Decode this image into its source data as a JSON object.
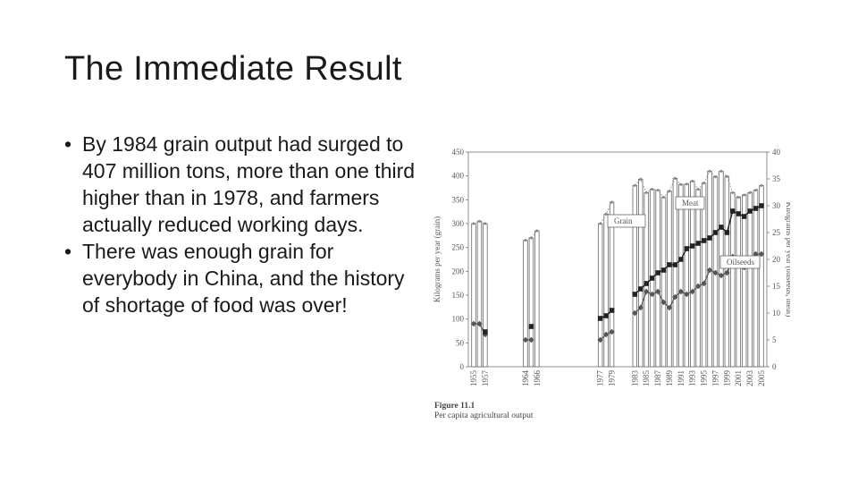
{
  "slide": {
    "title": "The Immediate Result",
    "bullets": [
      {
        "marker": "•",
        "text": "By 1984 grain output had surged to 407 million tons, more than one third higher than in 1978, and farmers actually reduced working days."
      },
      {
        "marker": "•",
        "text": "There was enough grain for everybody in China, and the history of shortage of food was over!"
      }
    ]
  },
  "colors": {
    "bar_fill": "#ffffff",
    "bar_stroke": "#666666",
    "meat": "#222222",
    "oilseeds": "#555555",
    "grain_line": "#888888"
  },
  "chart_data": {
    "type": "bar",
    "title": "",
    "caption_label": "Figure 11.1",
    "caption_text": "Per capita agricultural output",
    "ylabel": "Kilograms per year (grain)",
    "y2label": "Kilograms per year (oilseeds, meat)",
    "ylim": [
      0,
      450
    ],
    "y2lim": [
      0,
      40
    ],
    "yticks": [
      0,
      50,
      100,
      150,
      200,
      250,
      300,
      350,
      400,
      450
    ],
    "y2ticks": [
      0,
      5,
      10,
      15,
      20,
      25,
      30,
      35,
      40
    ],
    "tick_labels": [
      "1955",
      "1957",
      "1964",
      "1966",
      "1977",
      "1979",
      "1983",
      "1985",
      "1987",
      "1989",
      "1991",
      "1993",
      "1995",
      "1997",
      "1999",
      "2001",
      "2003",
      "2005"
    ],
    "legend": [
      "Meat",
      "Grain",
      "Oilseeds"
    ],
    "years": [
      1955,
      1956,
      1957,
      1964,
      1965,
      1966,
      1977,
      1978,
      1979,
      1983,
      1984,
      1985,
      1986,
      1987,
      1988,
      1989,
      1990,
      1991,
      1992,
      1993,
      1994,
      1995,
      1996,
      1997,
      1998,
      1999,
      2000,
      2001,
      2002,
      2003,
      2004,
      2005
    ],
    "series": [
      {
        "name": "Grain",
        "axis": "left",
        "style": "bars",
        "values": [
          300,
          305,
          300,
          265,
          270,
          285,
          300,
          320,
          345,
          380,
          393,
          365,
          372,
          370,
          355,
          368,
          395,
          382,
          383,
          389,
          372,
          385,
          410,
          398,
          410,
          399,
          365,
          355,
          360,
          365,
          370,
          380
        ]
      },
      {
        "name": "Meat",
        "axis": "right",
        "style": "line-square",
        "values": [
          null,
          null,
          6.5,
          null,
          7.5,
          null,
          9,
          9.5,
          10.5,
          13.5,
          14.5,
          15.5,
          16.5,
          17.5,
          18,
          19,
          19,
          20,
          22,
          22.5,
          23,
          23.5,
          24,
          25,
          26,
          25,
          29,
          28.5,
          28,
          29,
          29.5,
          30
        ]
      },
      {
        "name": "Oilseeds",
        "axis": "right",
        "style": "line-diamond",
        "values": [
          8,
          8,
          6,
          5,
          5,
          null,
          5,
          6,
          6.5,
          10,
          11,
          14,
          13.5,
          14,
          12,
          11,
          13,
          14,
          13.5,
          14,
          15,
          15.5,
          18,
          17.5,
          17,
          17.5,
          20.5,
          19.5,
          18.5,
          20,
          21,
          21
        ]
      }
    ]
  }
}
